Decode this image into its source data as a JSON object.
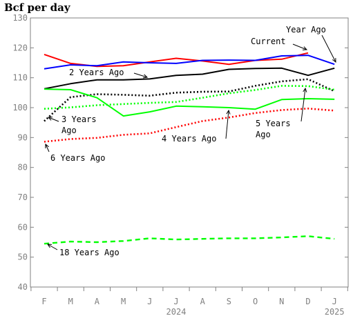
{
  "chart_data": {
    "type": "line",
    "title": "",
    "ylabel": "Bcf per day",
    "xlabel": "",
    "ylim": [
      40,
      130
    ],
    "yticks": [
      40,
      50,
      60,
      70,
      80,
      90,
      100,
      110,
      120,
      130
    ],
    "categories": [
      "F",
      "M",
      "A",
      "M",
      "J",
      "J",
      "A",
      "S",
      "O",
      "N",
      "D",
      "J"
    ],
    "year_labels": [
      {
        "label": "2024",
        "index": 5
      },
      {
        "label": "2025",
        "index": 11
      }
    ],
    "series": [
      {
        "name": "Current",
        "color": "#ff0000",
        "dash": "solid",
        "values": [
          117.8,
          114.8,
          113.8,
          114.0,
          115.3,
          116.5,
          115.6,
          114.5,
          115.8,
          116.2,
          118.3,
          null
        ]
      },
      {
        "name": "Year Ago",
        "color": "#0000ff",
        "dash": "solid",
        "values": [
          113.0,
          114.3,
          114.0,
          115.3,
          115.0,
          114.8,
          115.8,
          115.9,
          115.8,
          117.3,
          117.5,
          114.5
        ]
      },
      {
        "name": "2 Years Ago",
        "color": "#000000",
        "dash": "solid",
        "values": [
          106.3,
          108.0,
          109.3,
          109.3,
          109.6,
          110.8,
          111.2,
          112.8,
          113.1,
          113.2,
          110.8,
          113.2
        ]
      },
      {
        "name": "3 Years Ago",
        "color": "#000000",
        "dash": "dotted",
        "values": [
          95.5,
          103.5,
          104.5,
          104.3,
          104.0,
          105.0,
          105.3,
          105.4,
          107.3,
          108.8,
          109.5,
          105.5
        ]
      },
      {
        "name": "4 Years Ago",
        "color": "#00ff00",
        "dash": "solid",
        "values": [
          106.2,
          106.0,
          103.3,
          97.2,
          98.6,
          100.5,
          100.3,
          100.0,
          99.5,
          102.7,
          103.0,
          102.8
        ]
      },
      {
        "name": "5 Years Ago",
        "color": "#00ff00",
        "dash": "dotted",
        "values": [
          99.6,
          100.1,
          100.8,
          101.2,
          101.6,
          101.9,
          103.3,
          104.8,
          105.9,
          107.3,
          107.2,
          106.0
        ]
      },
      {
        "name": "6 Years Ago",
        "color": "#ff0000",
        "dash": "dotted",
        "values": [
          88.6,
          89.5,
          89.9,
          90.9,
          91.4,
          93.5,
          95.5,
          96.7,
          98.2,
          99.2,
          99.7,
          99.0
        ]
      },
      {
        "name": "18 Years Ago",
        "color": "#00ff00",
        "dash": "dashed",
        "values": [
          54.5,
          55.2,
          55.0,
          55.4,
          56.3,
          55.9,
          56.1,
          56.3,
          56.3,
          56.6,
          57.0,
          56.1
        ]
      }
    ],
    "annotations": [
      {
        "lines": [
          "Year Ago"
        ]
      },
      {
        "lines": [
          "Current"
        ]
      },
      {
        "lines": [
          "2 Years Ago"
        ]
      },
      {
        "lines": [
          "3 Years",
          "Ago"
        ]
      },
      {
        "lines": [
          "5 Years",
          "Ago"
        ]
      },
      {
        "lines": [
          "4 Years Ago"
        ]
      },
      {
        "lines": [
          "6 Years Ago"
        ]
      },
      {
        "lines": [
          "18 Years Ago"
        ]
      }
    ],
    "grid": false,
    "legend": "none"
  }
}
